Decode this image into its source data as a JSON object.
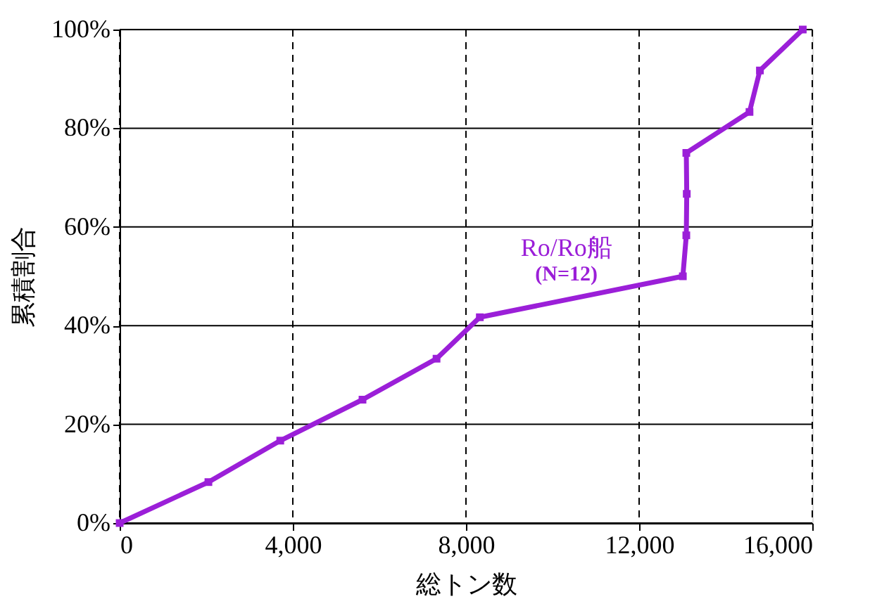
{
  "chart_data": {
    "type": "line",
    "xlabel": "総トン数",
    "ylabel": "累積割合",
    "x": [
      0,
      2050,
      3710,
      5610,
      7320,
      8320,
      13010,
      13090,
      13100,
      13090,
      14550,
      14790,
      15780
    ],
    "series": [
      {
        "name": "Ro/Ro船",
        "color": "#9b1fd8",
        "values": [
          0,
          8.3,
          16.7,
          25,
          33.3,
          41.7,
          50,
          58.3,
          66.7,
          75,
          83.3,
          91.7,
          100
        ]
      }
    ],
    "annotations": [
      "(N=12)"
    ],
    "xlim": [
      0,
      16000
    ],
    "xticks": [
      {
        "value": 0,
        "label": "0"
      },
      {
        "value": 4000,
        "label": "4,000"
      },
      {
        "value": 8000,
        "label": "8,000"
      },
      {
        "value": 12000,
        "label": "12,000"
      },
      {
        "value": 16000,
        "label": "16,000"
      }
    ],
    "ylim": [
      0,
      100
    ],
    "yticks": [
      {
        "value": 0,
        "label": "0%"
      },
      {
        "value": 20,
        "label": "20%"
      },
      {
        "value": 40,
        "label": "40%"
      },
      {
        "value": 60,
        "label": "60%"
      },
      {
        "value": 80,
        "label": "80%"
      },
      {
        "value": 100,
        "label": "100%"
      }
    ],
    "grid": true,
    "marker": "square",
    "line_style": "solid"
  }
}
